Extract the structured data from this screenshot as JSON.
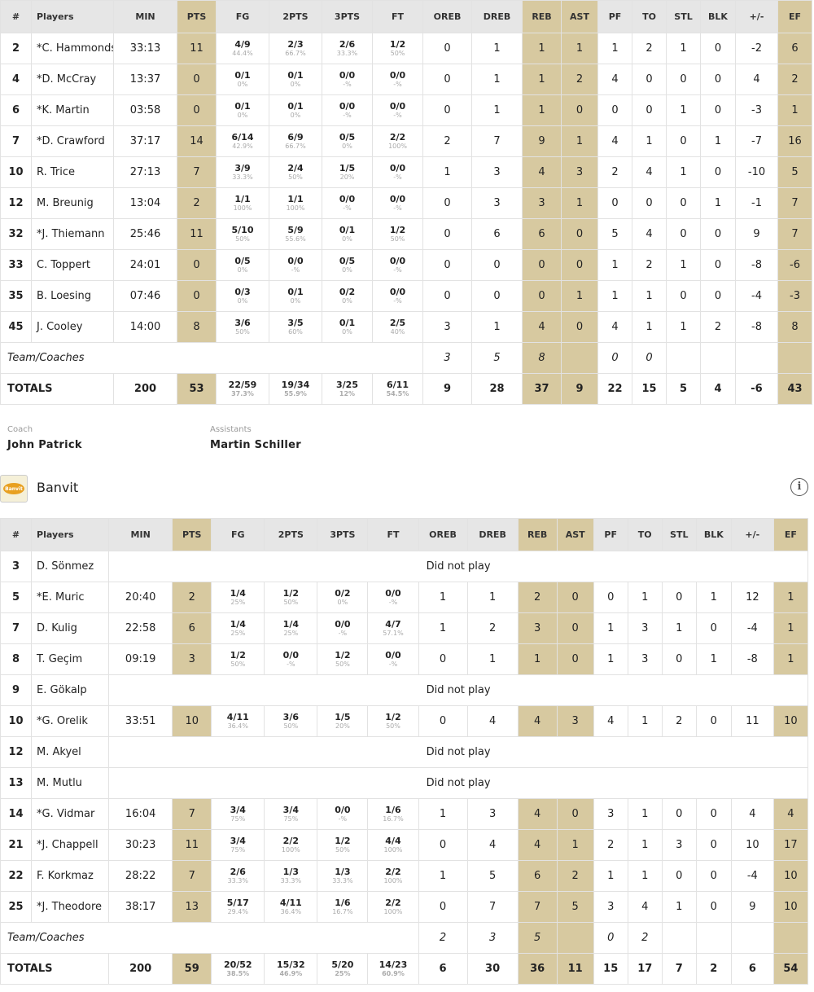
{
  "columns": [
    "#",
    "Players",
    "MIN",
    "PTS",
    "FG",
    "2PTS",
    "3PTS",
    "FT",
    "OREB",
    "DREB",
    "REB",
    "AST",
    "PF",
    "TO",
    "STL",
    "BLK",
    "+/-",
    "EF"
  ],
  "home": {
    "players": [
      {
        "no": "2",
        "name": "*C. Hammonds",
        "min": "33:13",
        "pts": "11",
        "fg": [
          "4/9",
          "44.4%"
        ],
        "p2": [
          "2/3",
          "66.7%"
        ],
        "p3": [
          "2/6",
          "33.3%"
        ],
        "ft": [
          "1/2",
          "50%"
        ],
        "oreb": "0",
        "dreb": "1",
        "reb": "1",
        "ast": "1",
        "pf": "1",
        "to": "2",
        "stl": "1",
        "blk": "0",
        "pm": "-2",
        "ef": "6"
      },
      {
        "no": "4",
        "name": "*D. McCray",
        "min": "13:37",
        "pts": "0",
        "fg": [
          "0/1",
          "0%"
        ],
        "p2": [
          "0/1",
          "0%"
        ],
        "p3": [
          "0/0",
          "-%"
        ],
        "ft": [
          "0/0",
          "-%"
        ],
        "oreb": "0",
        "dreb": "1",
        "reb": "1",
        "ast": "2",
        "pf": "4",
        "to": "0",
        "stl": "0",
        "blk": "0",
        "pm": "4",
        "ef": "2"
      },
      {
        "no": "6",
        "name": "*K. Martin",
        "min": "03:58",
        "pts": "0",
        "fg": [
          "0/1",
          "0%"
        ],
        "p2": [
          "0/1",
          "0%"
        ],
        "p3": [
          "0/0",
          "-%"
        ],
        "ft": [
          "0/0",
          "-%"
        ],
        "oreb": "0",
        "dreb": "1",
        "reb": "1",
        "ast": "0",
        "pf": "0",
        "to": "0",
        "stl": "1",
        "blk": "0",
        "pm": "-3",
        "ef": "1"
      },
      {
        "no": "7",
        "name": "*D. Crawford",
        "min": "37:17",
        "pts": "14",
        "fg": [
          "6/14",
          "42.9%"
        ],
        "p2": [
          "6/9",
          "66.7%"
        ],
        "p3": [
          "0/5",
          "0%"
        ],
        "ft": [
          "2/2",
          "100%"
        ],
        "oreb": "2",
        "dreb": "7",
        "reb": "9",
        "ast": "1",
        "pf": "4",
        "to": "1",
        "stl": "0",
        "blk": "1",
        "pm": "-7",
        "ef": "16"
      },
      {
        "no": "10",
        "name": "R. Trice",
        "min": "27:13",
        "pts": "7",
        "fg": [
          "3/9",
          "33.3%"
        ],
        "p2": [
          "2/4",
          "50%"
        ],
        "p3": [
          "1/5",
          "20%"
        ],
        "ft": [
          "0/0",
          "-%"
        ],
        "oreb": "1",
        "dreb": "3",
        "reb": "4",
        "ast": "3",
        "pf": "2",
        "to": "4",
        "stl": "1",
        "blk": "0",
        "pm": "-10",
        "ef": "5"
      },
      {
        "no": "12",
        "name": "M. Breunig",
        "min": "13:04",
        "pts": "2",
        "fg": [
          "1/1",
          "100%"
        ],
        "p2": [
          "1/1",
          "100%"
        ],
        "p3": [
          "0/0",
          "-%"
        ],
        "ft": [
          "0/0",
          "-%"
        ],
        "oreb": "0",
        "dreb": "3",
        "reb": "3",
        "ast": "1",
        "pf": "0",
        "to": "0",
        "stl": "0",
        "blk": "1",
        "pm": "-1",
        "ef": "7"
      },
      {
        "no": "32",
        "name": "*J. Thiemann",
        "min": "25:46",
        "pts": "11",
        "fg": [
          "5/10",
          "50%"
        ],
        "p2": [
          "5/9",
          "55.6%"
        ],
        "p3": [
          "0/1",
          "0%"
        ],
        "ft": [
          "1/2",
          "50%"
        ],
        "oreb": "0",
        "dreb": "6",
        "reb": "6",
        "ast": "0",
        "pf": "5",
        "to": "4",
        "stl": "0",
        "blk": "0",
        "pm": "9",
        "ef": "7"
      },
      {
        "no": "33",
        "name": "C. Toppert",
        "min": "24:01",
        "pts": "0",
        "fg": [
          "0/5",
          "0%"
        ],
        "p2": [
          "0/0",
          "-%"
        ],
        "p3": [
          "0/5",
          "0%"
        ],
        "ft": [
          "0/0",
          "-%"
        ],
        "oreb": "0",
        "dreb": "0",
        "reb": "0",
        "ast": "0",
        "pf": "1",
        "to": "2",
        "stl": "1",
        "blk": "0",
        "pm": "-8",
        "ef": "-6"
      },
      {
        "no": "35",
        "name": "B. Loesing",
        "min": "07:46",
        "pts": "0",
        "fg": [
          "0/3",
          "0%"
        ],
        "p2": [
          "0/1",
          "0%"
        ],
        "p3": [
          "0/2",
          "0%"
        ],
        "ft": [
          "0/0",
          "-%"
        ],
        "oreb": "0",
        "dreb": "0",
        "reb": "0",
        "ast": "1",
        "pf": "1",
        "to": "1",
        "stl": "0",
        "blk": "0",
        "pm": "-4",
        "ef": "-3"
      },
      {
        "no": "45",
        "name": "J. Cooley",
        "min": "14:00",
        "pts": "8",
        "fg": [
          "3/6",
          "50%"
        ],
        "p2": [
          "3/5",
          "60%"
        ],
        "p3": [
          "0/1",
          "0%"
        ],
        "ft": [
          "2/5",
          "40%"
        ],
        "oreb": "3",
        "dreb": "1",
        "reb": "4",
        "ast": "0",
        "pf": "4",
        "to": "1",
        "stl": "1",
        "blk": "2",
        "pm": "-8",
        "ef": "8"
      }
    ],
    "team": {
      "label": "Team/Coaches",
      "oreb": "3",
      "dreb": "5",
      "reb": "8",
      "pf": "0",
      "to": "0"
    },
    "totals": {
      "label": "TOTALS",
      "min": "200",
      "pts": "53",
      "fg": [
        "22/59",
        "37.3%"
      ],
      "p2": [
        "19/34",
        "55.9%"
      ],
      "p3": [
        "3/25",
        "12%"
      ],
      "ft": [
        "6/11",
        "54.5%"
      ],
      "oreb": "9",
      "dreb": "28",
      "reb": "37",
      "ast": "9",
      "pf": "22",
      "to": "15",
      "stl": "5",
      "blk": "4",
      "pm": "-6",
      "ef": "43"
    },
    "coach_label": "Coach",
    "coach": "John Patrick",
    "assist_label": "Assistants",
    "assistants": "Martin Schiller"
  },
  "away": {
    "team_name": "Banvit",
    "logo_text": "Banvit",
    "info_glyph": "i",
    "players": [
      {
        "no": "3",
        "name": "D. Sönmez",
        "dnp": "Did not play"
      },
      {
        "no": "5",
        "name": "*E. Muric",
        "min": "20:40",
        "pts": "2",
        "fg": [
          "1/4",
          "25%"
        ],
        "p2": [
          "1/2",
          "50%"
        ],
        "p3": [
          "0/2",
          "0%"
        ],
        "ft": [
          "0/0",
          "-%"
        ],
        "oreb": "1",
        "dreb": "1",
        "reb": "2",
        "ast": "0",
        "pf": "0",
        "to": "1",
        "stl": "0",
        "blk": "1",
        "pm": "12",
        "ef": "1"
      },
      {
        "no": "7",
        "name": "D. Kulig",
        "min": "22:58",
        "pts": "6",
        "fg": [
          "1/4",
          "25%"
        ],
        "p2": [
          "1/4",
          "25%"
        ],
        "p3": [
          "0/0",
          "-%"
        ],
        "ft": [
          "4/7",
          "57.1%"
        ],
        "oreb": "1",
        "dreb": "2",
        "reb": "3",
        "ast": "0",
        "pf": "1",
        "to": "3",
        "stl": "1",
        "blk": "0",
        "pm": "-4",
        "ef": "1"
      },
      {
        "no": "8",
        "name": "T. Geçim",
        "min": "09:19",
        "pts": "3",
        "fg": [
          "1/2",
          "50%"
        ],
        "p2": [
          "0/0",
          "-%"
        ],
        "p3": [
          "1/2",
          "50%"
        ],
        "ft": [
          "0/0",
          "-%"
        ],
        "oreb": "0",
        "dreb": "1",
        "reb": "1",
        "ast": "0",
        "pf": "1",
        "to": "3",
        "stl": "0",
        "blk": "1",
        "pm": "-8",
        "ef": "1"
      },
      {
        "no": "9",
        "name": "E. Gökalp",
        "dnp": "Did not play"
      },
      {
        "no": "10",
        "name": "*G. Orelik",
        "min": "33:51",
        "pts": "10",
        "fg": [
          "4/11",
          "36.4%"
        ],
        "p2": [
          "3/6",
          "50%"
        ],
        "p3": [
          "1/5",
          "20%"
        ],
        "ft": [
          "1/2",
          "50%"
        ],
        "oreb": "0",
        "dreb": "4",
        "reb": "4",
        "ast": "3",
        "pf": "4",
        "to": "1",
        "stl": "2",
        "blk": "0",
        "pm": "11",
        "ef": "10"
      },
      {
        "no": "12",
        "name": "M. Akyel",
        "dnp": "Did not play"
      },
      {
        "no": "13",
        "name": "M. Mutlu",
        "dnp": "Did not play"
      },
      {
        "no": "14",
        "name": "*G. Vidmar",
        "min": "16:04",
        "pts": "7",
        "fg": [
          "3/4",
          "75%"
        ],
        "p2": [
          "3/4",
          "75%"
        ],
        "p3": [
          "0/0",
          "-%"
        ],
        "ft": [
          "1/6",
          "16.7%"
        ],
        "oreb": "1",
        "dreb": "3",
        "reb": "4",
        "ast": "0",
        "pf": "3",
        "to": "1",
        "stl": "0",
        "blk": "0",
        "pm": "4",
        "ef": "4"
      },
      {
        "no": "21",
        "name": "*J. Chappell",
        "min": "30:23",
        "pts": "11",
        "fg": [
          "3/4",
          "75%"
        ],
        "p2": [
          "2/2",
          "100%"
        ],
        "p3": [
          "1/2",
          "50%"
        ],
        "ft": [
          "4/4",
          "100%"
        ],
        "oreb": "0",
        "dreb": "4",
        "reb": "4",
        "ast": "1",
        "pf": "2",
        "to": "1",
        "stl": "3",
        "blk": "0",
        "pm": "10",
        "ef": "17"
      },
      {
        "no": "22",
        "name": "F. Korkmaz",
        "min": "28:22",
        "pts": "7",
        "fg": [
          "2/6",
          "33.3%"
        ],
        "p2": [
          "1/3",
          "33.3%"
        ],
        "p3": [
          "1/3",
          "33.3%"
        ],
        "ft": [
          "2/2",
          "100%"
        ],
        "oreb": "1",
        "dreb": "5",
        "reb": "6",
        "ast": "2",
        "pf": "1",
        "to": "1",
        "stl": "0",
        "blk": "0",
        "pm": "-4",
        "ef": "10"
      },
      {
        "no": "25",
        "name": "*J. Theodore",
        "min": "38:17",
        "pts": "13",
        "fg": [
          "5/17",
          "29.4%"
        ],
        "p2": [
          "4/11",
          "36.4%"
        ],
        "p3": [
          "1/6",
          "16.7%"
        ],
        "ft": [
          "2/2",
          "100%"
        ],
        "oreb": "0",
        "dreb": "7",
        "reb": "7",
        "ast": "5",
        "pf": "3",
        "to": "4",
        "stl": "1",
        "blk": "0",
        "pm": "9",
        "ef": "10"
      }
    ],
    "team": {
      "label": "Team/Coaches",
      "oreb": "2",
      "dreb": "3",
      "reb": "5",
      "pf": "0",
      "to": "2"
    },
    "totals": {
      "label": "TOTALS",
      "min": "200",
      "pts": "59",
      "fg": [
        "20/52",
        "38.5%"
      ],
      "p2": [
        "15/32",
        "46.9%"
      ],
      "p3": [
        "5/20",
        "25%"
      ],
      "ft": [
        "14/23",
        "60.9%"
      ],
      "oreb": "6",
      "dreb": "30",
      "reb": "36",
      "ast": "11",
      "pf": "15",
      "to": "17",
      "stl": "7",
      "blk": "2",
      "pm": "6",
      "ef": "54"
    }
  },
  "colors": {
    "highlight": "#d7c9a0",
    "header": "#e6e6e6"
  }
}
